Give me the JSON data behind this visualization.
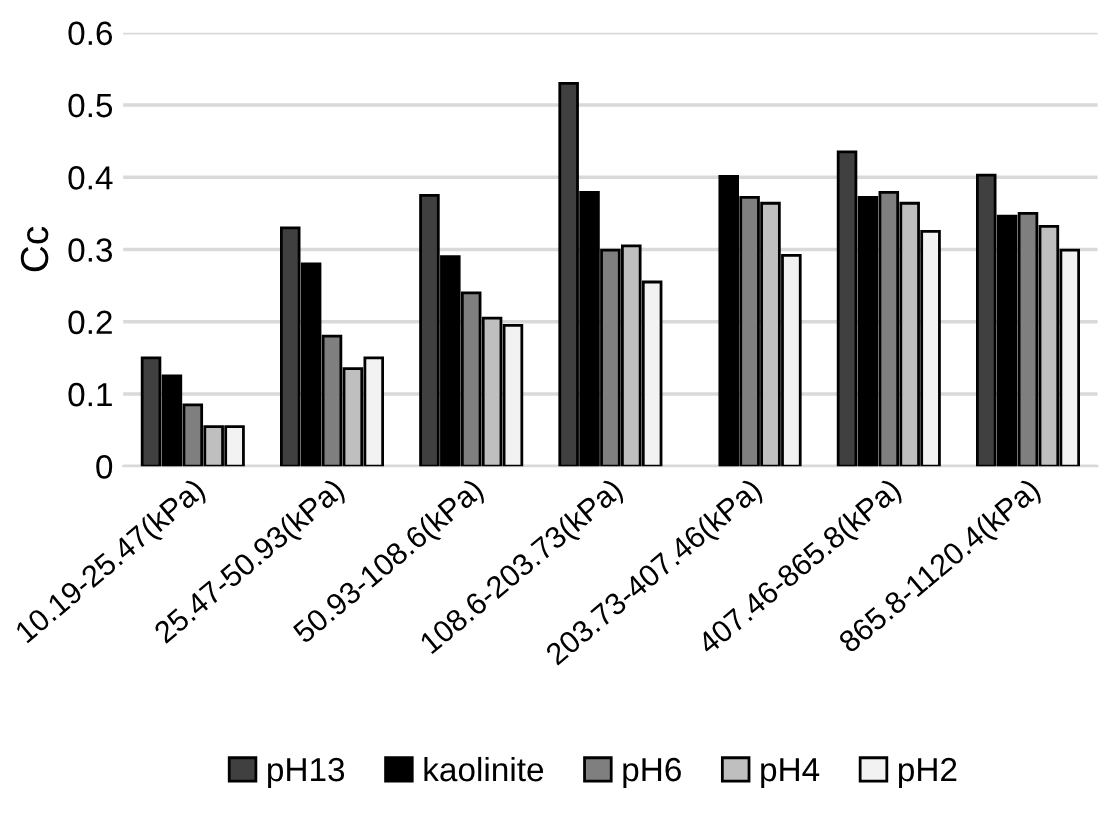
{
  "chart_data": {
    "type": "bar",
    "ylabel": "Cc",
    "categories": [
      "10.19-25.47(kPa)",
      "25.47-50.93(kPa)",
      "50.93-108.6(kPa)",
      "108.6-203.73(kPa)",
      "203.73-407.46(kPa)",
      "407.46-865.8(kPa)",
      "865.8-1120.4(kPa)"
    ],
    "series": [
      {
        "name": "pH13",
        "color": "#404040",
        "values": [
          0.15,
          0.33,
          0.375,
          0.53,
          null,
          0.435,
          0.403
        ]
      },
      {
        "name": "kaolinite",
        "color": "#000000",
        "values": [
          0.125,
          0.28,
          0.29,
          0.379,
          0.401,
          0.372,
          0.346
        ]
      },
      {
        "name": "pH6",
        "color": "#7f7f7f",
        "values": [
          0.085,
          0.18,
          0.24,
          0.299,
          0.372,
          0.379,
          0.35
        ]
      },
      {
        "name": "pH4",
        "color": "#bfbfbf",
        "values": [
          0.055,
          0.135,
          0.205,
          0.305,
          0.364,
          0.364,
          0.332
        ]
      },
      {
        "name": "pH2",
        "color": "#f2f2f2",
        "values": [
          0.055,
          0.15,
          0.195,
          0.255,
          0.292,
          0.325,
          0.299
        ]
      }
    ],
    "ylim": [
      0,
      0.6
    ],
    "yticks": [
      0,
      0.1,
      0.2,
      0.3,
      0.4,
      0.5,
      0.6
    ],
    "grid": "y",
    "legend": "bottom"
  }
}
